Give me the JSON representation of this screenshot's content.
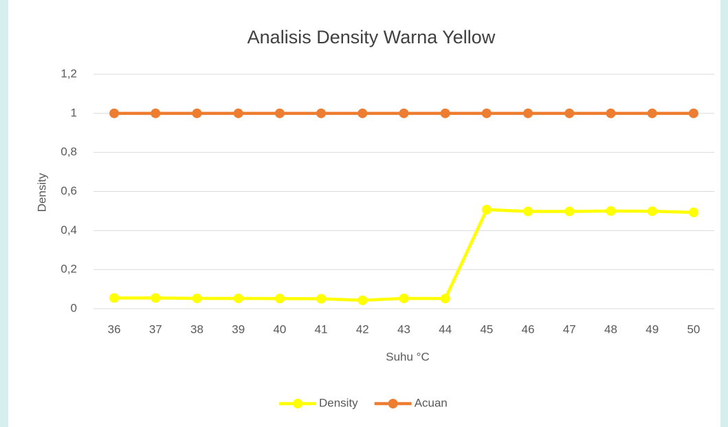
{
  "chart_data": {
    "type": "line",
    "title": "Analisis Density Warna Yellow",
    "x_label": "Suhu °C",
    "y_label": "Density",
    "categories": [
      "36",
      "37",
      "38",
      "39",
      "40",
      "41",
      "42",
      "43",
      "44",
      "45",
      "46",
      "47",
      "48",
      "49",
      "50"
    ],
    "series": [
      {
        "name": "Density",
        "color": "#ffff00",
        "values": [
          0.055,
          0.055,
          0.053,
          0.053,
          0.052,
          0.051,
          0.043,
          0.053,
          0.052,
          0.507,
          0.498,
          0.498,
          0.5,
          0.499,
          0.493
        ]
      },
      {
        "name": "Acuan",
        "color": "#ed7d31",
        "values": [
          1,
          1,
          1,
          1,
          1,
          1,
          1,
          1,
          1,
          1,
          1,
          1,
          1,
          1,
          1
        ]
      }
    ],
    "ylim": [
      0,
      1.2
    ],
    "yticks": [
      0,
      {
        "value": 0.2,
        "label": "0,2"
      },
      {
        "value": 0.4,
        "label": "0,4"
      },
      {
        "value": 0.6,
        "label": "0,6"
      },
      {
        "value": 0.8,
        "label": "0,8"
      },
      1,
      {
        "value": 1.2,
        "label": "1,2"
      }
    ],
    "grid": true,
    "legend": "bottom"
  }
}
